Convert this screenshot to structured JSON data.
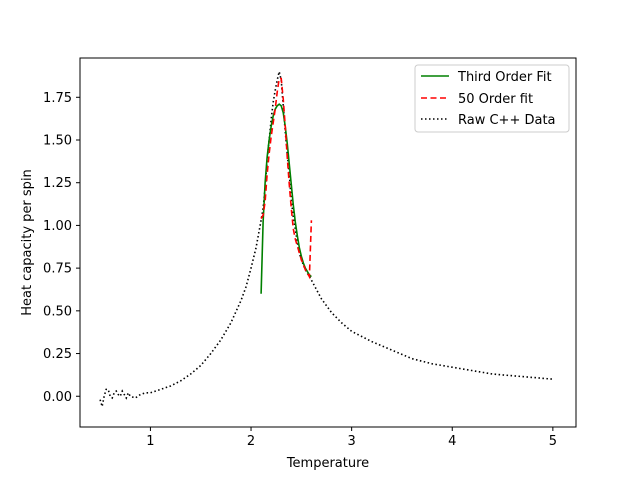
{
  "chart_data": {
    "type": "line",
    "title": "",
    "xlabel": "Temperature",
    "ylabel": "Heat capacity per spin",
    "xlim": [
      0.3,
      5.23
    ],
    "ylim": [
      -0.18,
      1.98
    ],
    "xticks": [
      1,
      2,
      3,
      4,
      5
    ],
    "xtick_labels": [
      "1",
      "2",
      "3",
      "4",
      "5"
    ],
    "yticks": [
      0.0,
      0.25,
      0.5,
      0.75,
      1.0,
      1.25,
      1.5,
      1.75
    ],
    "ytick_labels": [
      "0.00",
      "0.25",
      "0.50",
      "0.75",
      "1.00",
      "1.25",
      "1.50",
      "1.75"
    ],
    "grid": false,
    "legend_position": "top-right",
    "series": [
      {
        "name": "Third Order Fit",
        "color": "#008000",
        "style": "solid",
        "x": [
          2.1,
          2.12,
          2.14,
          2.16,
          2.18,
          2.2,
          2.22,
          2.24,
          2.26,
          2.28,
          2.3,
          2.32,
          2.34,
          2.36,
          2.38,
          2.4,
          2.42,
          2.44,
          2.46,
          2.48,
          2.5,
          2.52,
          2.54,
          2.56,
          2.58,
          2.6
        ],
        "y": [
          0.6,
          1.02,
          1.25,
          1.4,
          1.5,
          1.58,
          1.64,
          1.68,
          1.7,
          1.71,
          1.7,
          1.66,
          1.58,
          1.48,
          1.36,
          1.24,
          1.12,
          1.02,
          0.94,
          0.87,
          0.82,
          0.78,
          0.75,
          0.73,
          0.71,
          0.7
        ]
      },
      {
        "name": "50 Order fit",
        "color": "#ff0000",
        "style": "dashed",
        "x": [
          2.1,
          2.12,
          2.14,
          2.16,
          2.18,
          2.2,
          2.22,
          2.24,
          2.26,
          2.28,
          2.3,
          2.32,
          2.34,
          2.36,
          2.38,
          2.4,
          2.42,
          2.44,
          2.46,
          2.48,
          2.5,
          2.52,
          2.54,
          2.56,
          2.58,
          2.6
        ],
        "y": [
          1.04,
          1.06,
          1.14,
          1.3,
          1.42,
          1.52,
          1.6,
          1.68,
          1.78,
          1.86,
          1.86,
          1.74,
          1.58,
          1.4,
          1.24,
          1.1,
          0.98,
          0.92,
          0.88,
          0.84,
          0.8,
          0.77,
          0.74,
          0.72,
          0.7,
          1.03
        ]
      },
      {
        "name": "Raw C++ Data",
        "color": "#000000",
        "style": "dotted",
        "x": [
          0.5,
          0.52,
          0.54,
          0.56,
          0.58,
          0.6,
          0.62,
          0.64,
          0.66,
          0.68,
          0.7,
          0.72,
          0.74,
          0.76,
          0.78,
          0.8,
          0.85,
          0.9,
          0.95,
          1.0,
          1.1,
          1.2,
          1.3,
          1.4,
          1.5,
          1.6,
          1.7,
          1.8,
          1.9,
          1.95,
          2.0,
          2.05,
          2.1,
          2.12,
          2.14,
          2.16,
          2.18,
          2.2,
          2.22,
          2.24,
          2.26,
          2.28,
          2.3,
          2.32,
          2.34,
          2.36,
          2.38,
          2.4,
          2.42,
          2.44,
          2.46,
          2.48,
          2.5,
          2.52,
          2.54,
          2.56,
          2.58,
          2.6,
          2.7,
          2.8,
          2.9,
          3.0,
          3.2,
          3.4,
          3.6,
          3.8,
          4.0,
          4.2,
          4.4,
          4.6,
          4.8,
          5.0
        ],
        "y": [
          -0.02,
          -0.06,
          0.0,
          0.04,
          0.04,
          0.0,
          -0.01,
          0.02,
          0.03,
          0.01,
          0.0,
          0.03,
          0.01,
          -0.01,
          0.02,
          0.0,
          -0.01,
          0.01,
          0.02,
          0.02,
          0.04,
          0.06,
          0.09,
          0.13,
          0.18,
          0.25,
          0.33,
          0.43,
          0.56,
          0.64,
          0.75,
          0.87,
          1.03,
          1.1,
          1.22,
          1.38,
          1.5,
          1.62,
          1.72,
          1.79,
          1.85,
          1.9,
          1.85,
          1.7,
          1.55,
          1.42,
          1.3,
          1.15,
          1.05,
          0.98,
          0.9,
          0.84,
          0.8,
          0.77,
          0.74,
          0.72,
          0.7,
          0.68,
          0.57,
          0.49,
          0.43,
          0.38,
          0.32,
          0.27,
          0.22,
          0.19,
          0.17,
          0.15,
          0.13,
          0.12,
          0.11,
          0.1
        ]
      }
    ]
  }
}
